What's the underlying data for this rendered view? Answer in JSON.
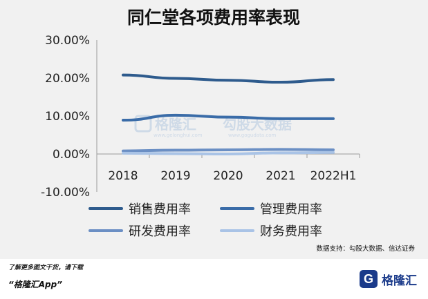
{
  "chart_data": {
    "type": "line",
    "title": "同仁堂各项费用率表现",
    "categories": [
      "2018",
      "2019",
      "2020",
      "2021",
      "2022H1"
    ],
    "ylim": [
      -10,
      30
    ],
    "yticks": [
      "30.00%",
      "20.00%",
      "10.00%",
      "0.00%",
      "-10.00%"
    ],
    "ytick_values": [
      30,
      20,
      10,
      0,
      -10
    ],
    "grid": false,
    "legend_position": "bottom",
    "series": [
      {
        "name": "销售费用率",
        "color": "#2e5b8d",
        "values": [
          20.8,
          19.9,
          19.4,
          18.9,
          19.6
        ]
      },
      {
        "name": "管理费用率",
        "color": "#3a6ca8",
        "values": [
          8.9,
          10.2,
          9.7,
          9.3,
          9.3
        ]
      },
      {
        "name": "研发费用率",
        "color": "#6b8fc4",
        "values": [
          0.8,
          1.0,
          1.1,
          1.2,
          1.1
        ]
      },
      {
        "name": "财务费用率",
        "color": "#a9c3e6",
        "values": [
          0.2,
          0.1,
          0.0,
          0.3,
          0.4
        ]
      }
    ]
  },
  "watermark": {
    "brand": "格隆汇",
    "site1": "www.gelonghui.com",
    "partner": "勾股大数据",
    "site2": "www.gogudata.com"
  },
  "source": "数据支持：勾股大数据、信达证券",
  "footer": {
    "note": "了解更多图文干货，请下载",
    "app": "“格隆汇App”",
    "logo_letter": "G",
    "brand": "格隆汇"
  }
}
